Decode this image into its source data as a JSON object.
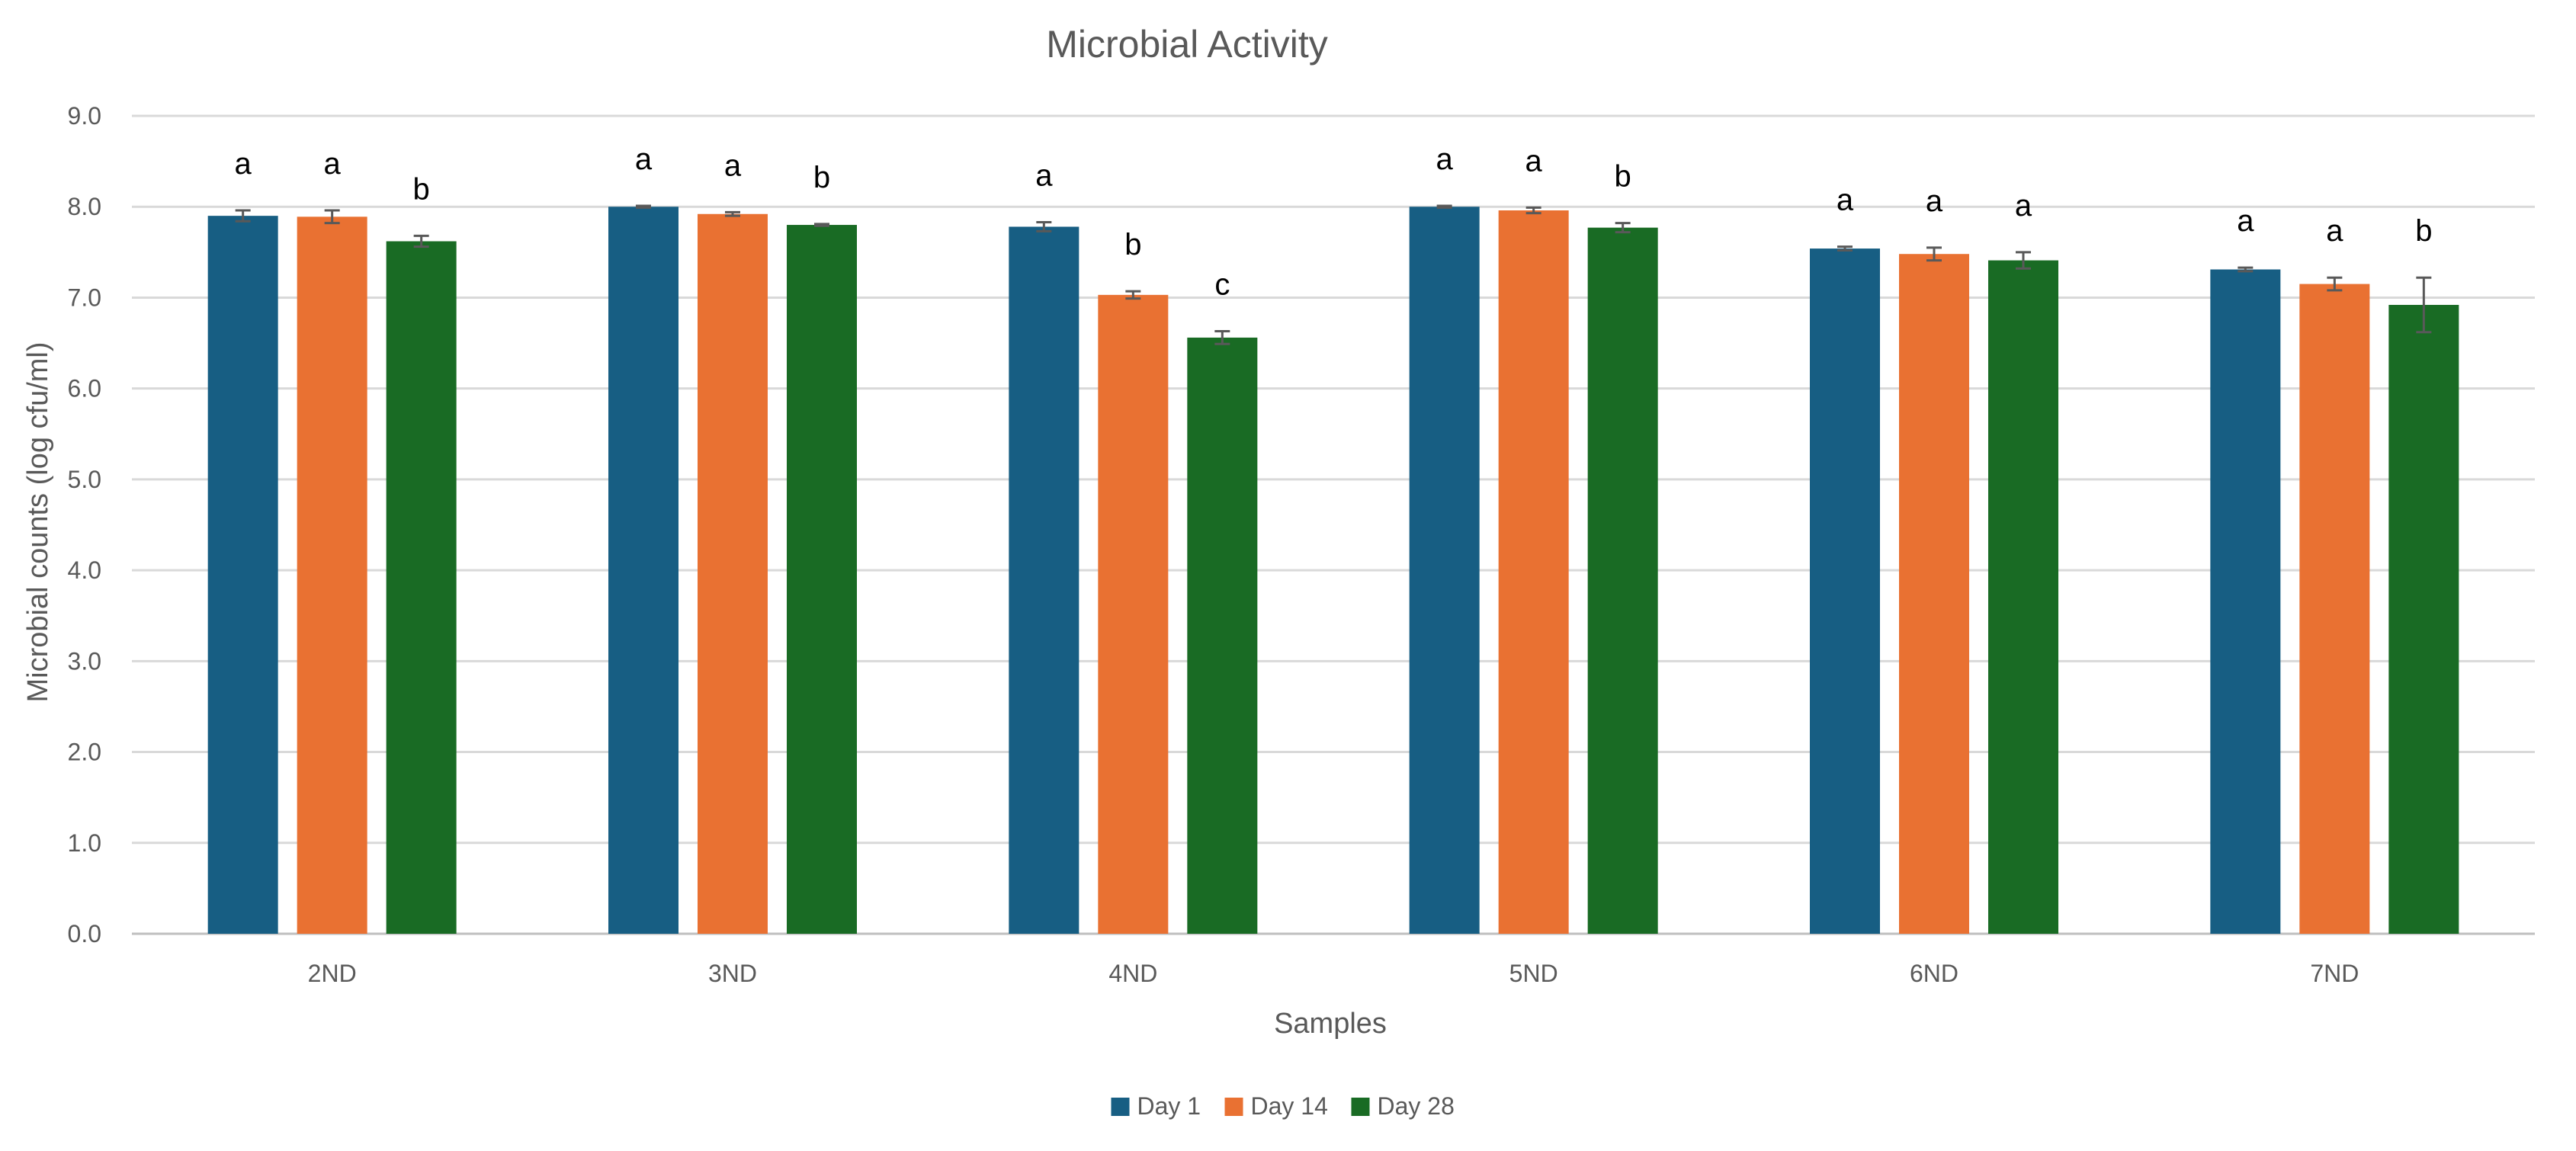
{
  "chart_data": {
    "type": "bar",
    "title": "Microbial Activity",
    "xlabel": "Samples",
    "ylabel": "Microbial counts (log cfu/ml)",
    "ylim": [
      0,
      9
    ],
    "ytick_step": 1,
    "ytick_labels": [
      "0.0",
      "1.0",
      "2.0",
      "3.0",
      "4.0",
      "5.0",
      "6.0",
      "7.0",
      "8.0",
      "9.0"
    ],
    "grid": true,
    "legend_position": "bottom-center",
    "categories": [
      "2ND",
      "3ND",
      "4ND",
      "5ND",
      "6ND",
      "7ND"
    ],
    "series": [
      {
        "name": "Day 1",
        "color": "#175e83",
        "values": [
          7.9,
          8.0,
          7.78,
          8.0,
          7.54,
          7.31
        ],
        "errors": [
          0.06,
          0.01,
          0.05,
          0.01,
          0.02,
          0.02
        ],
        "significance": [
          "a",
          "a",
          "a",
          "a",
          "a",
          "a"
        ]
      },
      {
        "name": "Day 14",
        "color": "#e97132",
        "values": [
          7.89,
          7.92,
          7.03,
          7.96,
          7.48,
          7.15
        ],
        "errors": [
          0.07,
          0.02,
          0.04,
          0.03,
          0.07,
          0.07
        ],
        "significance": [
          "a",
          "a",
          "b",
          "a",
          "a",
          "a"
        ]
      },
      {
        "name": "Day 28",
        "color": "#196b24",
        "values": [
          7.62,
          7.8,
          6.56,
          7.77,
          7.41,
          6.92
        ],
        "errors": [
          0.06,
          0.01,
          0.07,
          0.05,
          0.09,
          0.3
        ],
        "significance": [
          "b",
          "b",
          "c",
          "b",
          "a",
          "b"
        ]
      }
    ]
  }
}
